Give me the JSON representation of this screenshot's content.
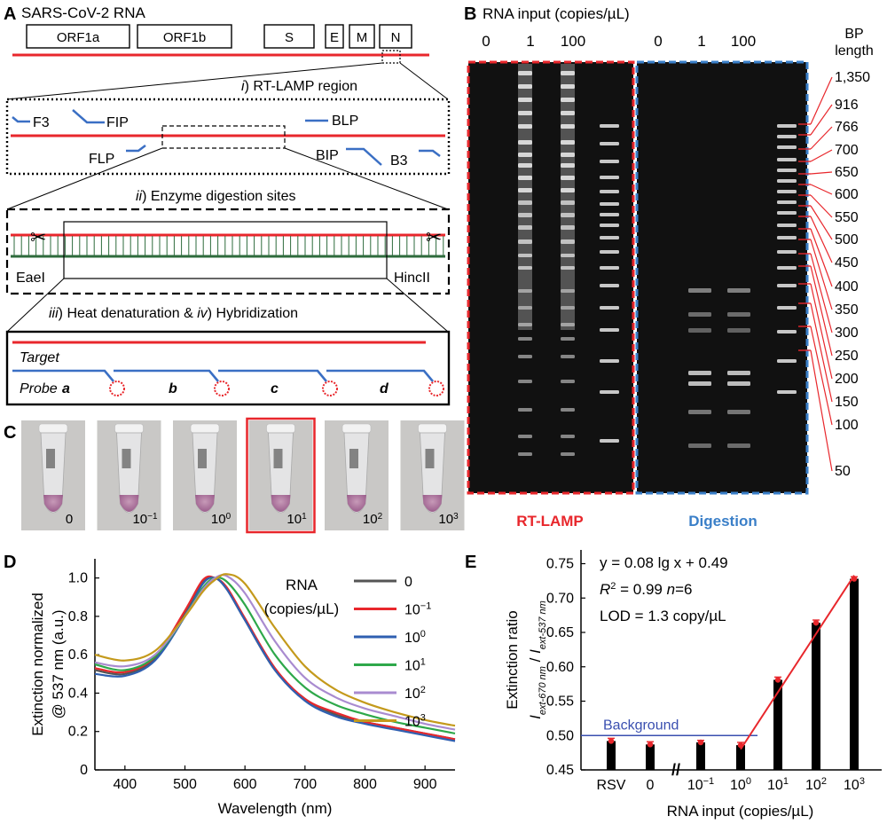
{
  "panelA": {
    "label": "A",
    "title": "SARS-CoV-2 RNA",
    "genes": [
      "ORF1a",
      "ORF1b",
      "S",
      "E",
      "M",
      "N"
    ],
    "step1": {
      "num": "i",
      "text": ") RT-LAMP region"
    },
    "primers": [
      "F3",
      "FIP",
      "BLP",
      "FLP",
      "BIP",
      "B3"
    ],
    "step2": {
      "num": "ii",
      "text": ") Enzyme digestion sites"
    },
    "enzymes": [
      "EaeI",
      "HincII"
    ],
    "step3": {
      "num1": "iii",
      "mid": ") Heat denaturation & ",
      "num2": "iv",
      "end": ") Hybridization"
    },
    "target": "Target",
    "probe": "Probe",
    "probe_letters": [
      "a",
      "b",
      "c",
      "d"
    ],
    "colors": {
      "rna": "#e8272c",
      "primer": "#3a6fc4",
      "dna": "#2e6b3c",
      "particle": "#e8272c"
    }
  },
  "panelB": {
    "label": "B",
    "title": "RNA input (copies/µL)",
    "lanes_left": [
      "0",
      "1",
      "100"
    ],
    "lanes_right": [
      "0",
      "1",
      "100"
    ],
    "bp_header": [
      "BP",
      "length"
    ],
    "bp_ladder": [
      "1,350",
      "916",
      "766",
      "700",
      "650",
      "600",
      "550",
      "500",
      "450",
      "400",
      "350",
      "300",
      "250",
      "200",
      "150",
      "100",
      "50"
    ],
    "gel_left_label": "RT-LAMP",
    "gel_right_label": "Digestion",
    "colors": {
      "left": "#e8272c",
      "right": "#3a7fc8",
      "gel": "#111111"
    }
  },
  "panelC": {
    "label": "C",
    "tubes": [
      {
        "base": "0",
        "exp": ""
      },
      {
        "base": "10",
        "exp": "−1"
      },
      {
        "base": "10",
        "exp": "0"
      },
      {
        "base": "10",
        "exp": "1"
      },
      {
        "base": "10",
        "exp": "2"
      },
      {
        "base": "10",
        "exp": "3"
      }
    ],
    "highlighted_index": 3
  },
  "panelD": {
    "label": "D",
    "chart_data": {
      "type": "line",
      "xlabel": "Wavelength (nm)",
      "ylabel_lines": [
        "Extinction normalized",
        "@ 537 nm (a.u.)"
      ],
      "xlim": [
        350,
        950
      ],
      "ylim": [
        0,
        1.1
      ],
      "xticks": [
        400,
        500,
        600,
        700,
        800,
        900
      ],
      "yticks": [
        0,
        0.2,
        0.4,
        0.6,
        0.8,
        1.0
      ],
      "ytick_labels": [
        "0",
        "0.2",
        "0.4",
        "0.6",
        "0.8",
        "1.0"
      ],
      "legend_title": [
        "RNA",
        "(copies/µL)"
      ],
      "x": [
        350,
        400,
        450,
        500,
        530,
        550,
        570,
        600,
        650,
        700,
        750,
        800,
        850,
        900,
        950
      ],
      "series": [
        {
          "name": "0",
          "base": "0",
          "exp": "",
          "color": "#555555",
          "values": [
            0.52,
            0.5,
            0.58,
            0.82,
            0.98,
            1.0,
            0.94,
            0.78,
            0.52,
            0.37,
            0.29,
            0.25,
            0.22,
            0.19,
            0.16
          ]
        },
        {
          "name": "10-1",
          "base": "10",
          "exp": "−1",
          "color": "#e8272c",
          "values": [
            0.53,
            0.51,
            0.59,
            0.83,
            0.99,
            1.0,
            0.95,
            0.79,
            0.53,
            0.37,
            0.3,
            0.25,
            0.22,
            0.19,
            0.16
          ]
        },
        {
          "name": "100",
          "base": "10",
          "exp": "0",
          "color": "#2f5fb0",
          "values": [
            0.5,
            0.49,
            0.57,
            0.8,
            0.97,
            1.0,
            0.94,
            0.78,
            0.52,
            0.36,
            0.28,
            0.24,
            0.21,
            0.18,
            0.15
          ]
        },
        {
          "name": "101",
          "base": "10",
          "exp": "1",
          "color": "#2ea84a",
          "values": [
            0.55,
            0.52,
            0.59,
            0.8,
            0.95,
            1.0,
            0.98,
            0.86,
            0.6,
            0.43,
            0.34,
            0.29,
            0.25,
            0.22,
            0.19
          ]
        },
        {
          "name": "102",
          "base": "10",
          "exp": "2",
          "color": "#a98bd0",
          "values": [
            0.56,
            0.54,
            0.6,
            0.8,
            0.94,
            1.0,
            1.01,
            0.92,
            0.67,
            0.48,
            0.38,
            0.32,
            0.28,
            0.24,
            0.21
          ]
        },
        {
          "name": "103",
          "base": "10",
          "exp": "3",
          "color": "#c49a1c",
          "values": [
            0.6,
            0.57,
            0.62,
            0.8,
            0.93,
            0.99,
            1.02,
            0.97,
            0.74,
            0.54,
            0.42,
            0.35,
            0.3,
            0.26,
            0.23
          ]
        }
      ]
    }
  },
  "panelE": {
    "label": "E",
    "chart_data": {
      "type": "bar",
      "ylabel_main": "Extinction ratio",
      "ylabel_sub": {
        "I": "I",
        "num": "ext-670 nm",
        "den": "ext-537 nm"
      },
      "xlabel": "RNA input (copies/µL)",
      "ylim": [
        0.45,
        0.77
      ],
      "yticks": [
        0.45,
        0.5,
        0.55,
        0.6,
        0.65,
        0.7,
        0.75
      ],
      "ytick_labels": [
        "0.45",
        "0.50",
        "0.55",
        "0.60",
        "0.65",
        "0.70",
        "0.75"
      ],
      "categories": [
        {
          "base": "RSV",
          "exp": ""
        },
        {
          "base": "0",
          "exp": ""
        },
        {
          "base": "10",
          "exp": "−1"
        },
        {
          "base": "10",
          "exp": "0"
        },
        {
          "base": "10",
          "exp": "1"
        },
        {
          "base": "10",
          "exp": "2"
        },
        {
          "base": "10",
          "exp": "3"
        }
      ],
      "values": [
        0.492,
        0.487,
        0.49,
        0.486,
        0.581,
        0.664,
        0.728
      ],
      "errors": [
        0.004,
        0.004,
        0.003,
        0.004,
        0.004,
        0.004,
        0.003
      ],
      "background_value": 0.5,
      "background_label": "Background",
      "fit_line": [
        [
          3,
          0.48
        ],
        [
          6,
          0.733
        ]
      ],
      "axis_break": "//",
      "annotations": [
        "y = 0.08 lg x + 0.49",
        "= 0.99",
        "n",
        "=6",
        "LOD = 1.3 copy/µL"
      ],
      "r2_label": {
        "R": "R",
        "sup": "2"
      },
      "colors": {
        "bar": "#000000",
        "fit": "#e8272c",
        "background": "#3a4fb0",
        "points": "#e8272c"
      }
    }
  }
}
